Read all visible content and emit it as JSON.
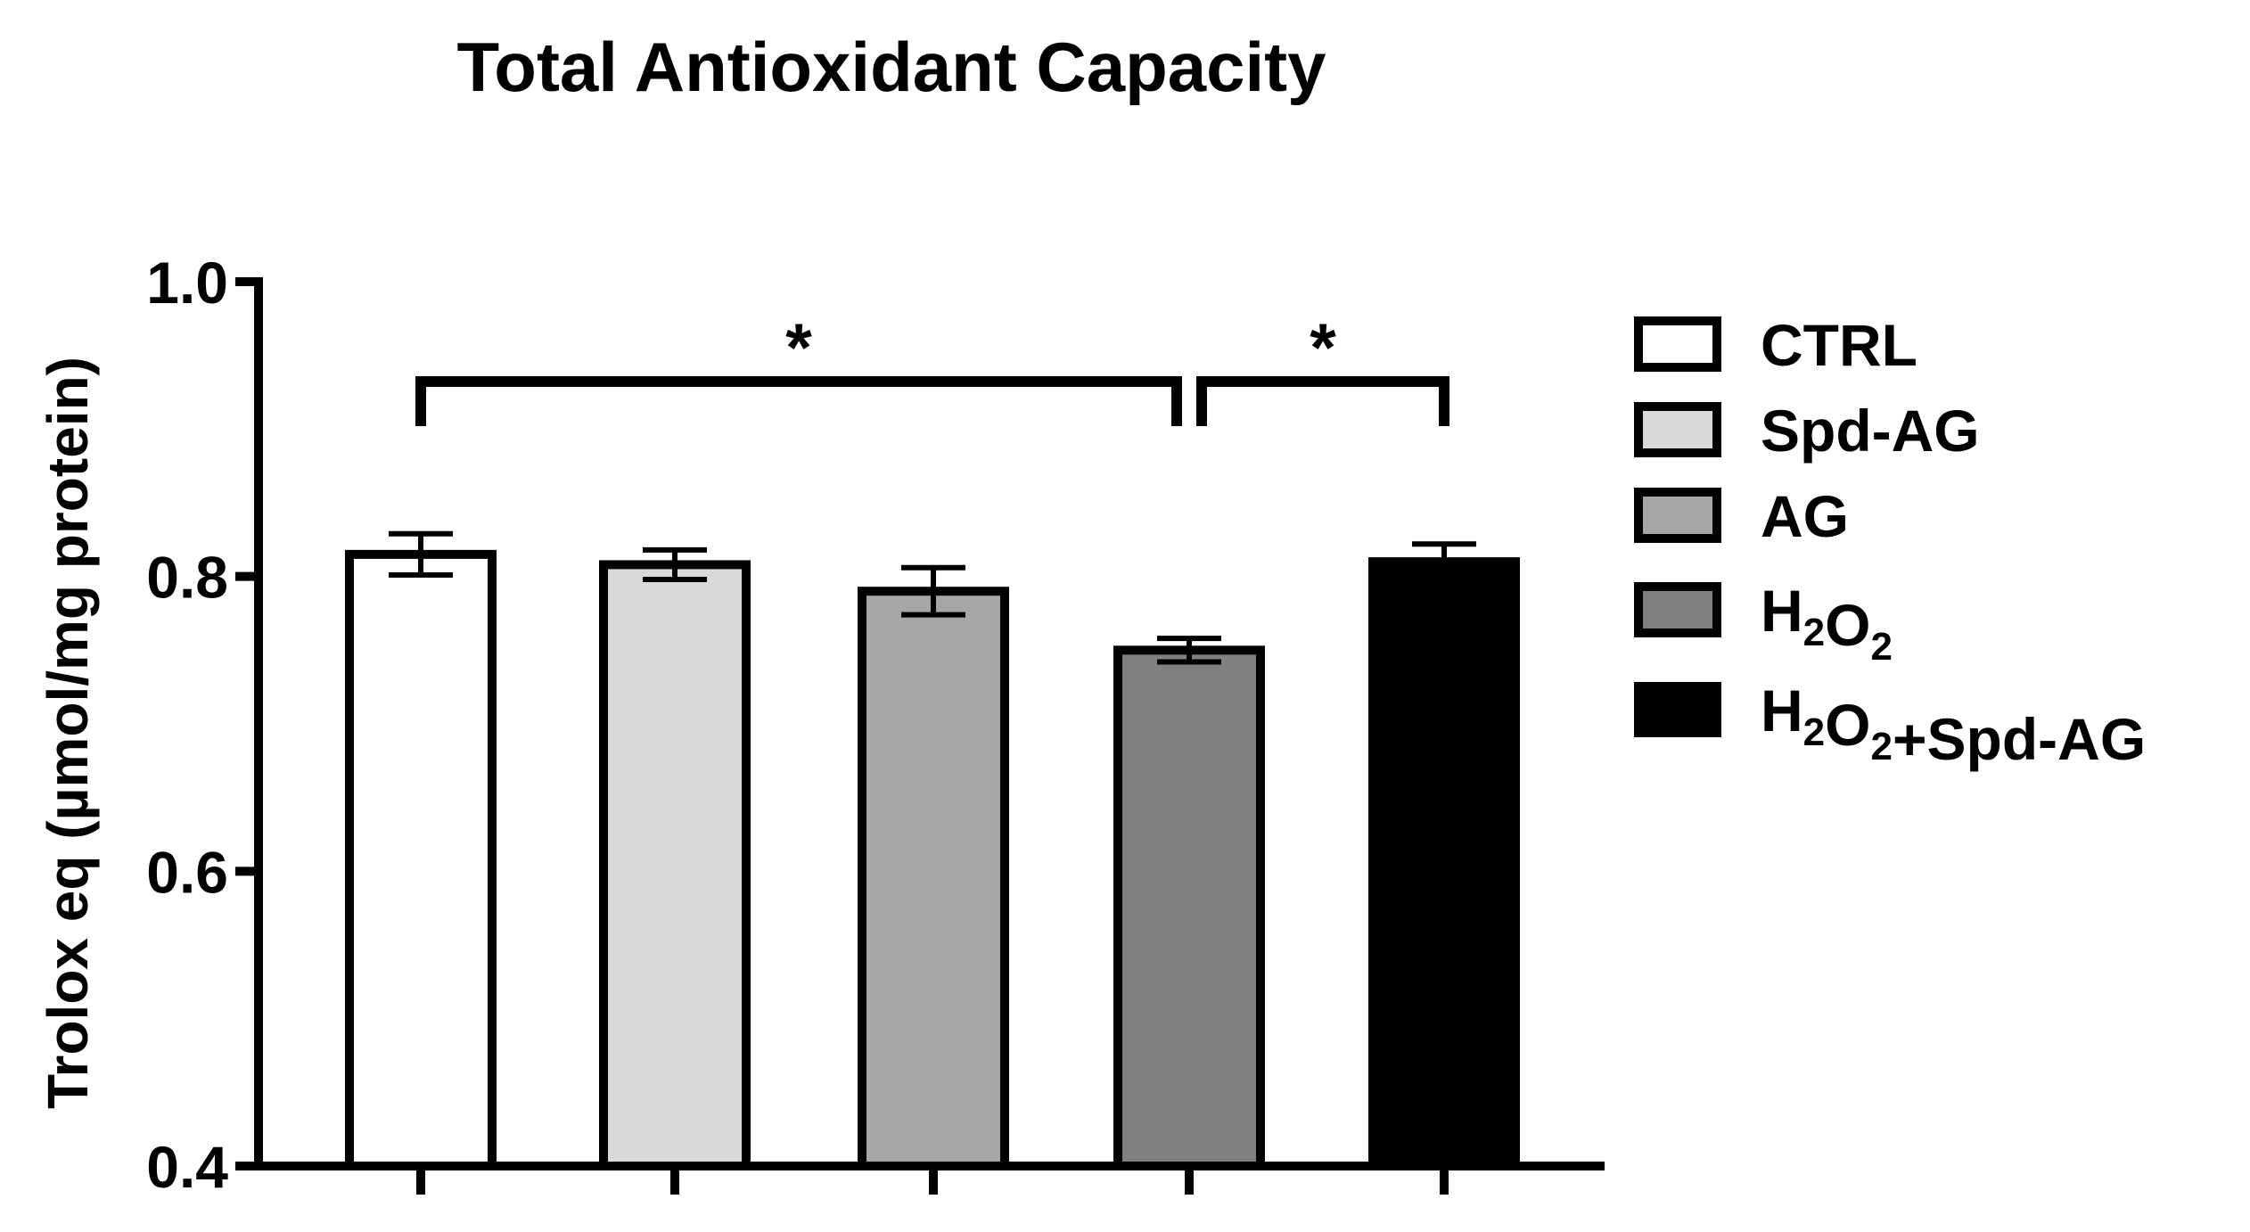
{
  "chart_data": {
    "type": "bar",
    "title": "Total Antioxidant Capacity",
    "xlabel": "",
    "ylabel": "Trolox eq (µmol/mg protein)",
    "ylim": [
      0.4,
      1.0
    ],
    "yticks": [
      0.4,
      0.6,
      0.8,
      1.0
    ],
    "ytick_labels": [
      "0.4",
      "0.6",
      "0.8",
      "1.0"
    ],
    "categories": [
      "CTRL",
      "Spd-AG",
      "AG",
      "H2O2",
      "H2O2+Spd-AG"
    ],
    "values": [
      0.815,
      0.808,
      0.79,
      0.75,
      0.81
    ],
    "errors": [
      0.014,
      0.01,
      0.016,
      0.008,
      0.012
    ],
    "colors": [
      "#ffffff",
      "#d9d9d9",
      "#a6a6a8",
      "#808080",
      "#000000"
    ],
    "legend": {
      "position": "right",
      "entries": [
        {
          "label": "CTRL",
          "base": "CTRL",
          "sub1": "",
          "mid": "",
          "sub2": "",
          "tail": ""
        },
        {
          "label": "Spd-AG",
          "base": "Spd-AG",
          "sub1": "",
          "mid": "",
          "sub2": "",
          "tail": ""
        },
        {
          "label": "AG",
          "base": "AG",
          "sub1": "",
          "mid": "",
          "sub2": "",
          "tail": ""
        },
        {
          "label": "H2O2",
          "base": "H",
          "sub1": "2",
          "mid": "O",
          "sub2": "2",
          "tail": ""
        },
        {
          "label": "H2O2+Spd-AG",
          "base": "H",
          "sub1": "2",
          "mid": "O",
          "sub2": "2",
          "tail": "+Spd-AG"
        }
      ]
    },
    "annotations": [
      {
        "from": 0,
        "to": 3,
        "text": "*"
      },
      {
        "from": 3,
        "to": 4,
        "text": "*"
      }
    ]
  }
}
